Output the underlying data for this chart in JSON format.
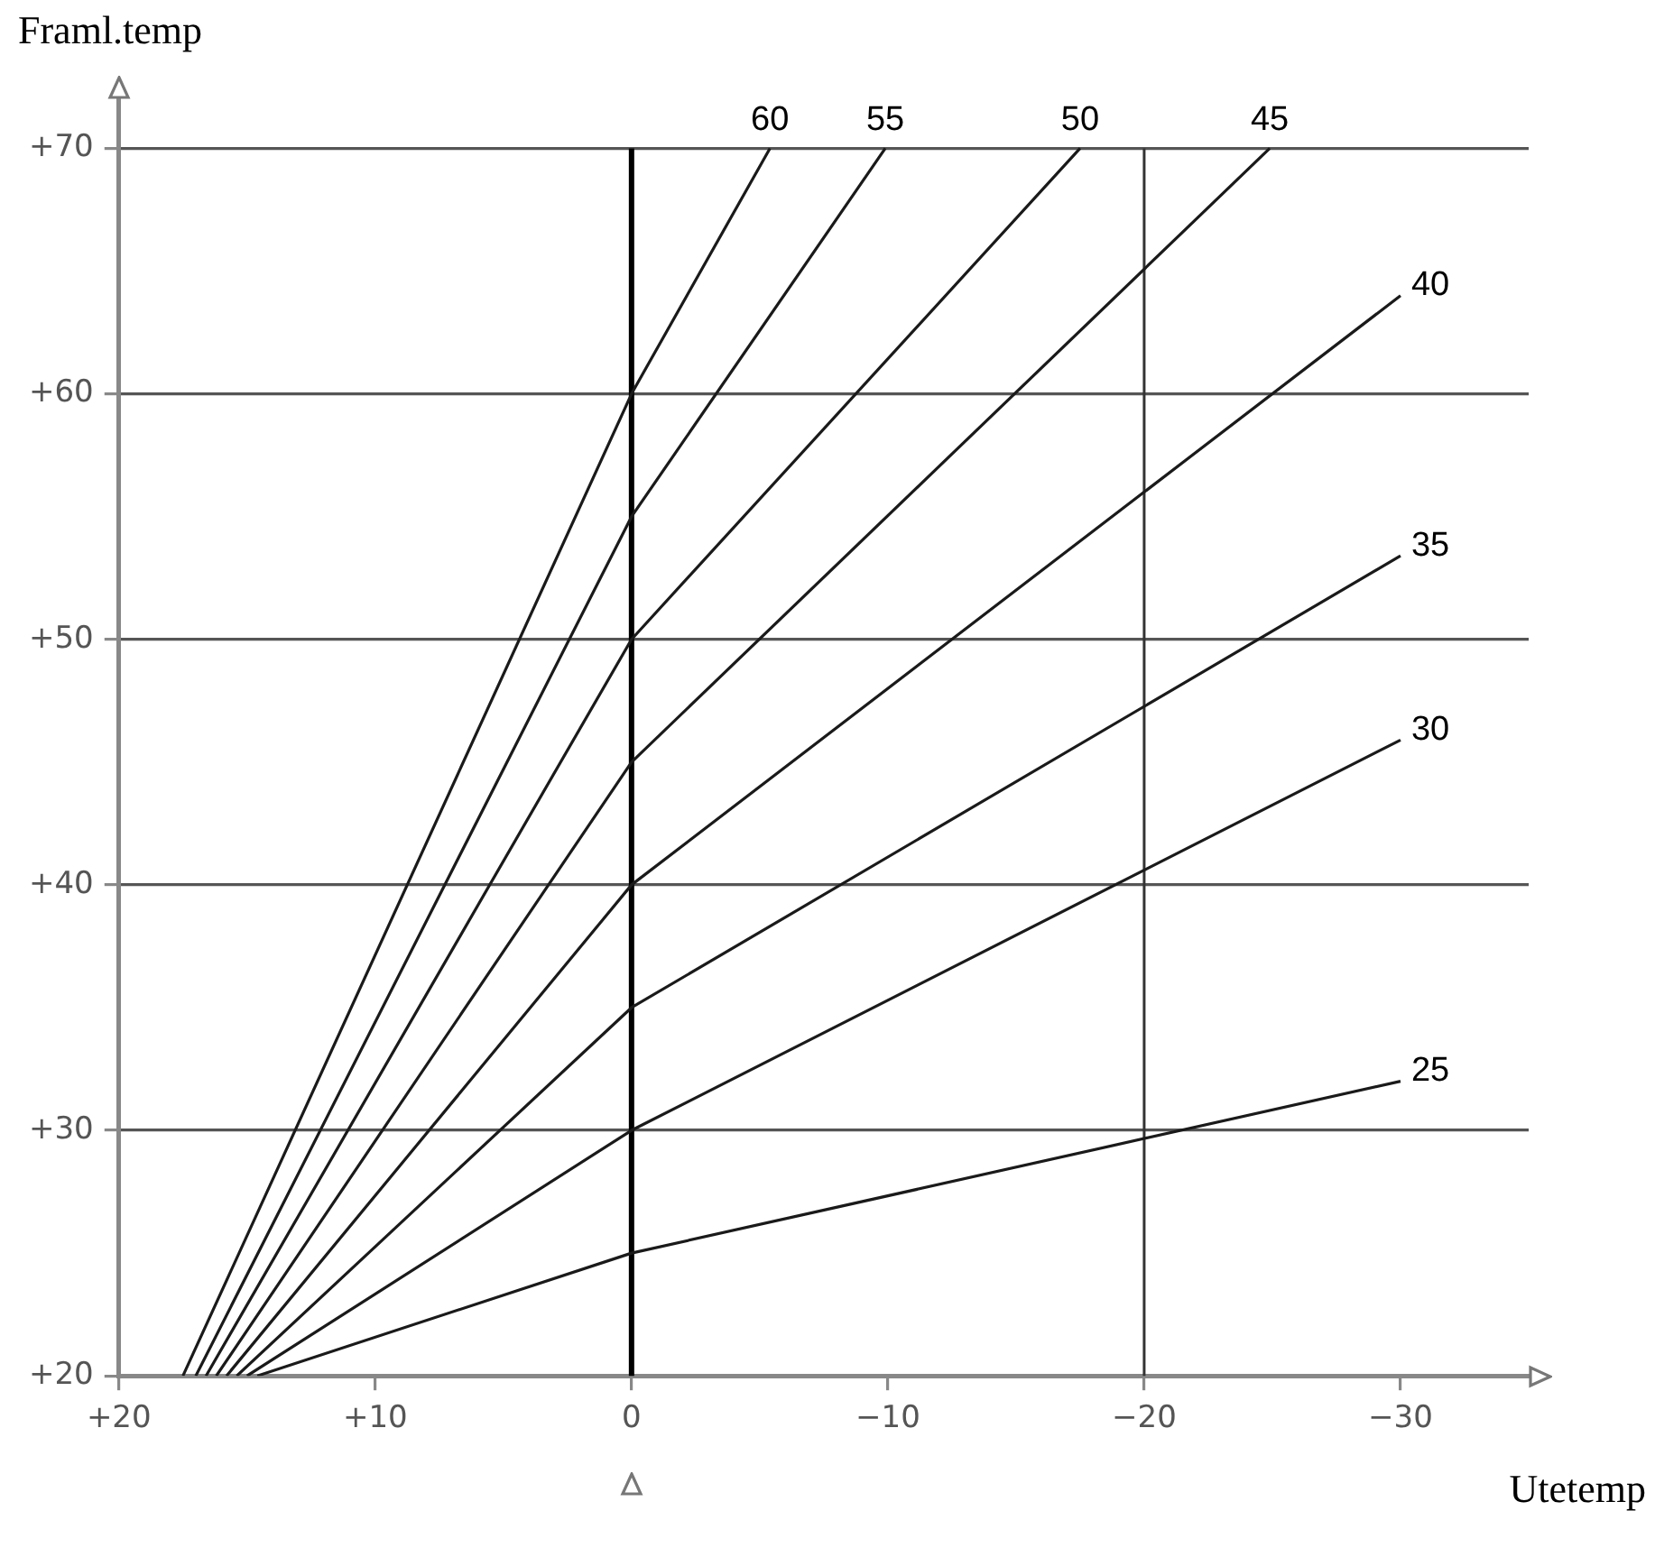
{
  "chart_data": {
    "type": "line",
    "xlabel": "Utetemp",
    "ylabel": "Framl.temp",
    "xlim": [
      20,
      -35
    ],
    "ylim": [
      20,
      72
    ],
    "xticks": [
      {
        "value": 20,
        "label": "+20"
      },
      {
        "value": 10,
        "label": "+10"
      },
      0,
      {
        "value": -10,
        "label": "−10"
      },
      {
        "value": -20,
        "label": "−20"
      },
      {
        "value": -30,
        "label": "−30"
      }
    ],
    "yticks": [
      {
        "value": 20,
        "label": "+20"
      },
      {
        "value": 30,
        "label": "+30"
      },
      {
        "value": 40,
        "label": "+40"
      },
      {
        "value": 50,
        "label": "+50"
      },
      {
        "value": 60,
        "label": "+60"
      },
      {
        "value": 70,
        "label": "+70"
      }
    ],
    "grid": "y",
    "marker": "none",
    "line_style": "solid",
    "legend": false,
    "ref_lines": [
      {
        "axis": "x",
        "value": 0,
        "color": "#000000"
      },
      {
        "axis": "x",
        "value": -20,
        "color": "#333333"
      }
    ],
    "series": [
      {
        "name": "60",
        "color": "#1a1a1a",
        "x": [
          17.5,
          0,
          -5.4
        ],
        "values": [
          20,
          60,
          70
        ]
      },
      {
        "name": "55",
        "color": "#1a1a1a",
        "x": [
          17.0,
          0,
          -9.9
        ],
        "values": [
          20,
          55,
          70
        ]
      },
      {
        "name": "50",
        "color": "#1a1a1a",
        "x": [
          16.6,
          0,
          -17.5
        ],
        "values": [
          20,
          50,
          70
        ]
      },
      {
        "name": "45",
        "color": "#1a1a1a",
        "x": [
          16.2,
          0,
          -24.9
        ],
        "values": [
          20,
          45,
          70
        ]
      },
      {
        "name": "40",
        "color": "#1a1a1a",
        "x": [
          15.8,
          0,
          -30
        ],
        "values": [
          20,
          40,
          64.0
        ]
      },
      {
        "name": "35",
        "color": "#1a1a1a",
        "x": [
          15.4,
          0,
          -30
        ],
        "values": [
          20,
          35,
          53.4
        ]
      },
      {
        "name": "30",
        "color": "#1a1a1a",
        "x": [
          15.0,
          0,
          -30
        ],
        "values": [
          20,
          30,
          45.9
        ]
      },
      {
        "name": "25",
        "color": "#1a1a1a",
        "x": [
          14.6,
          0,
          -30
        ],
        "values": [
          20,
          25,
          32.0
        ]
      }
    ]
  }
}
